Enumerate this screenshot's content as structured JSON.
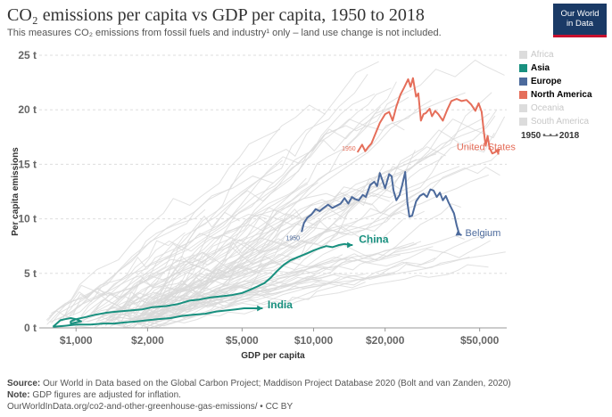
{
  "header": {
    "title": "CO₂ emissions per capita vs GDP per capita, 1950 to 2018",
    "subtitle": "This measures CO₂ emissions from fossil fuels and industry¹ only – land use change is not included.",
    "logo_line1": "Our World",
    "logo_line2": "in Data"
  },
  "footer": {
    "source_label": "Source:",
    "source_text": "Our World in Data based on the Global Carbon Project; Maddison Project Database 2020 (Bolt and van Zanden, 2020)",
    "note_label": "Note:",
    "note_text": "GDP figures are adjusted for inflation.",
    "url": "OurWorldInData.org/co2-and-other-greenhouse-gas-emissions/ • CC BY"
  },
  "timeline": {
    "start": "1950",
    "end": "2018"
  },
  "legend": [
    {
      "label": "Africa",
      "color": "#dcdcdc",
      "active": false
    },
    {
      "label": "Asia",
      "color": "#18907f",
      "active": true
    },
    {
      "label": "Europe",
      "color": "#4c6a9c",
      "active": true
    },
    {
      "label": "North America",
      "color": "#e56e5a",
      "active": true
    },
    {
      "label": "Oceania",
      "color": "#dcdcdc",
      "active": false
    },
    {
      "label": "South America",
      "color": "#dcdcdc",
      "active": false
    }
  ],
  "chart_data": {
    "type": "scatter",
    "xlabel": "GDP per capita",
    "ylabel": "Per capita emissions",
    "xscale": "log",
    "xlim": [
      700,
      65000
    ],
    "ylim": [
      0,
      25
    ],
    "xticks": [
      {
        "value": 1000,
        "label": "$1,000"
      },
      {
        "value": 2000,
        "label": "$2,000"
      },
      {
        "value": 5000,
        "label": "$5,000"
      },
      {
        "value": 10000,
        "label": "$10,000"
      },
      {
        "value": 20000,
        "label": "$20,000"
      },
      {
        "value": 50000,
        "label": "$50,000"
      }
    ],
    "yticks": [
      {
        "value": 0,
        "label": "0 t"
      },
      {
        "value": 5,
        "label": "5 t"
      },
      {
        "value": 10,
        "label": "10 t"
      },
      {
        "value": 15,
        "label": "15 t"
      },
      {
        "value": 20,
        "label": "20 t"
      },
      {
        "value": 25,
        "label": "25 t"
      }
    ],
    "grid": true,
    "legend_position": "right",
    "series": [
      {
        "name": "United States",
        "color": "#e56e5a",
        "start_label": "1950",
        "points": [
          [
            15300,
            16.1
          ],
          [
            16000,
            16.8
          ],
          [
            16500,
            16.2
          ],
          [
            17000,
            16.6
          ],
          [
            17500,
            16.9
          ],
          [
            18200,
            17.8
          ],
          [
            19000,
            18.8
          ],
          [
            20000,
            19.6
          ],
          [
            20800,
            19.8
          ],
          [
            21500,
            19.0
          ],
          [
            22300,
            20.3
          ],
          [
            23200,
            21.4
          ],
          [
            24000,
            22.0
          ],
          [
            25000,
            22.8
          ],
          [
            25600,
            22.1
          ],
          [
            26200,
            22.9
          ],
          [
            27000,
            21.2
          ],
          [
            27600,
            21.5
          ],
          [
            28300,
            19.0
          ],
          [
            29000,
            19.6
          ],
          [
            29700,
            19.7
          ],
          [
            30800,
            20.1
          ],
          [
            31500,
            19.4
          ],
          [
            32500,
            19.9
          ],
          [
            33500,
            19.6
          ],
          [
            35000,
            19.0
          ],
          [
            36500,
            20.0
          ],
          [
            38000,
            20.8
          ],
          [
            40000,
            21.0
          ],
          [
            42000,
            20.8
          ],
          [
            44000,
            20.9
          ],
          [
            46000,
            20.5
          ],
          [
            47000,
            20.2
          ],
          [
            48000,
            19.9
          ],
          [
            49500,
            20.6
          ],
          [
            51000,
            19.8
          ],
          [
            52000,
            18.1
          ],
          [
            53000,
            16.7
          ],
          [
            54000,
            17.6
          ],
          [
            55000,
            16.5
          ],
          [
            56500,
            16.0
          ],
          [
            58000,
            16.1
          ],
          [
            59500,
            16.3
          ],
          [
            60000,
            15.9
          ]
        ]
      },
      {
        "name": "Belgium",
        "color": "#4c6a9c",
        "start_label": "1950",
        "points": [
          [
            8900,
            8.8
          ],
          [
            9100,
            9.6
          ],
          [
            9400,
            10.1
          ],
          [
            9800,
            10.4
          ],
          [
            10200,
            10.9
          ],
          [
            10600,
            10.7
          ],
          [
            11000,
            11.0
          ],
          [
            11500,
            11.3
          ],
          [
            12000,
            11.0
          ],
          [
            12500,
            11.2
          ],
          [
            13000,
            11.4
          ],
          [
            13500,
            11.9
          ],
          [
            14000,
            11.4
          ],
          [
            14500,
            12.0
          ],
          [
            15000,
            11.8
          ],
          [
            15500,
            11.7
          ],
          [
            16100,
            12.2
          ],
          [
            16600,
            12.0
          ],
          [
            17300,
            13.1
          ],
          [
            18000,
            13.4
          ],
          [
            18500,
            13.0
          ],
          [
            19000,
            14.2
          ],
          [
            19500,
            13.5
          ],
          [
            20000,
            12.8
          ],
          [
            20800,
            14.1
          ],
          [
            21300,
            13.9
          ],
          [
            21700,
            12.6
          ],
          [
            22300,
            11.7
          ],
          [
            23000,
            12.2
          ],
          [
            23600,
            13.1
          ],
          [
            24300,
            14.3
          ],
          [
            24800,
            11.5
          ],
          [
            25300,
            10.2
          ],
          [
            26000,
            10.3
          ],
          [
            27000,
            11.6
          ],
          [
            28000,
            12.1
          ],
          [
            29000,
            12.3
          ],
          [
            30000,
            12.0
          ],
          [
            31000,
            12.7
          ],
          [
            32000,
            12.6
          ],
          [
            33000,
            12.0
          ],
          [
            34000,
            12.4
          ],
          [
            35000,
            11.7
          ],
          [
            36000,
            12.1
          ],
          [
            37000,
            11.5
          ],
          [
            38000,
            11.0
          ],
          [
            39000,
            10.5
          ],
          [
            40000,
            9.4
          ],
          [
            41000,
            8.6
          ],
          [
            42000,
            8.5
          ]
        ]
      },
      {
        "name": "China",
        "color": "#18907f",
        "start_label": "",
        "points": [
          [
            800,
            0.1
          ],
          [
            820,
            0.3
          ],
          [
            860,
            0.7
          ],
          [
            900,
            0.8
          ],
          [
            950,
            0.9
          ],
          [
            1000,
            0.8
          ],
          [
            1050,
            0.6
          ],
          [
            1000,
            0.5
          ],
          [
            950,
            0.4
          ],
          [
            950,
            0.6
          ],
          [
            1000,
            0.8
          ],
          [
            1100,
            1.0
          ],
          [
            1200,
            1.2
          ],
          [
            1350,
            1.4
          ],
          [
            1500,
            1.5
          ],
          [
            1700,
            1.6
          ],
          [
            1900,
            1.7
          ],
          [
            2100,
            1.9
          ],
          [
            2400,
            2.0
          ],
          [
            2700,
            2.2
          ],
          [
            3000,
            2.5
          ],
          [
            3300,
            2.6
          ],
          [
            3700,
            2.8
          ],
          [
            4100,
            2.9
          ],
          [
            4500,
            3.0
          ],
          [
            5000,
            3.2
          ],
          [
            5400,
            3.5
          ],
          [
            5800,
            3.8
          ],
          [
            6200,
            4.1
          ],
          [
            6600,
            4.6
          ],
          [
            7000,
            5.2
          ],
          [
            7500,
            5.8
          ],
          [
            8000,
            6.2
          ],
          [
            8600,
            6.5
          ],
          [
            9300,
            6.8
          ],
          [
            10000,
            7.1
          ],
          [
            10600,
            7.3
          ],
          [
            11300,
            7.5
          ],
          [
            12000,
            7.4
          ],
          [
            12800,
            7.6
          ],
          [
            13500,
            7.7
          ],
          [
            14200,
            7.6
          ],
          [
            14600,
            7.6
          ]
        ]
      },
      {
        "name": "India",
        "color": "#18907f",
        "start_label": "",
        "points": [
          [
            800,
            0.1
          ],
          [
            900,
            0.2
          ],
          [
            1000,
            0.3
          ],
          [
            1150,
            0.3
          ],
          [
            1300,
            0.4
          ],
          [
            1450,
            0.4
          ],
          [
            1600,
            0.5
          ],
          [
            1800,
            0.6
          ],
          [
            2000,
            0.7
          ],
          [
            2200,
            0.8
          ],
          [
            2500,
            0.9
          ],
          [
            2800,
            1.1
          ],
          [
            3100,
            1.2
          ],
          [
            3500,
            1.3
          ],
          [
            3900,
            1.5
          ],
          [
            4300,
            1.6
          ],
          [
            4700,
            1.7
          ],
          [
            5100,
            1.8
          ],
          [
            5500,
            1.8
          ],
          [
            5800,
            1.8
          ],
          [
            6100,
            1.8
          ]
        ]
      }
    ],
    "annotations": [
      {
        "text": "United States",
        "color": "#e56e5a"
      },
      {
        "text": "Belgium",
        "color": "#4c6a9c"
      },
      {
        "text": "China",
        "color": "#18907f"
      },
      {
        "text": "India",
        "color": "#18907f"
      }
    ]
  }
}
